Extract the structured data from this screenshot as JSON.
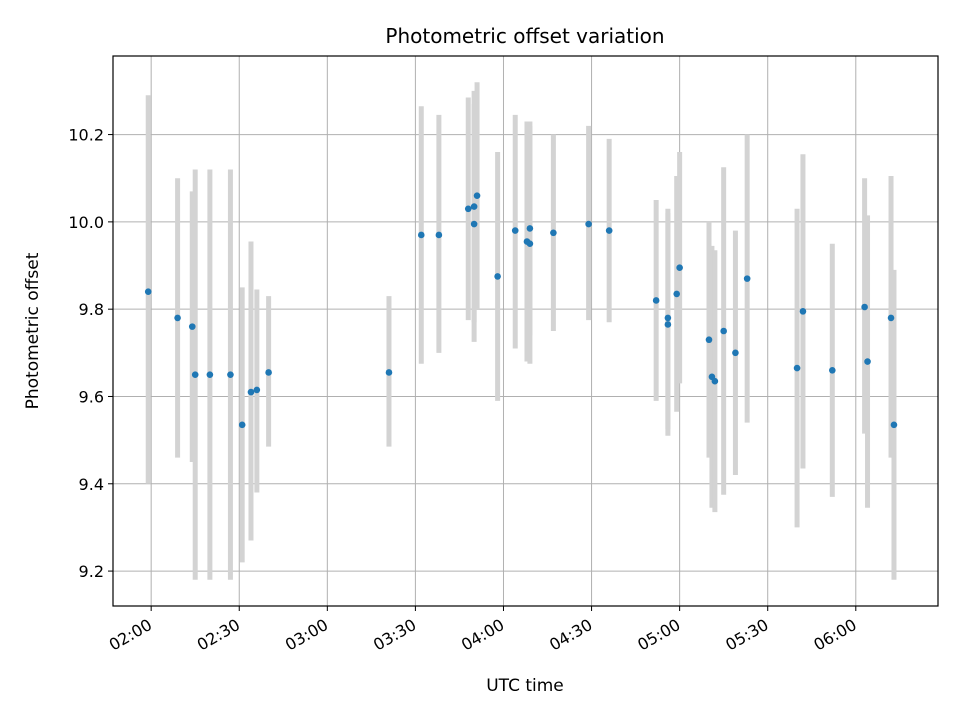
{
  "chart_data": {
    "type": "scatter",
    "title": "Photometric offset variation",
    "xlabel": "UTC time",
    "ylabel": "Photometric offset",
    "x_ticks": [
      "02:00",
      "02:30",
      "03:00",
      "03:30",
      "04:00",
      "04:30",
      "05:00",
      "05:30",
      "06:00"
    ],
    "y_ticks": [
      "9.2",
      "9.4",
      "9.6",
      "9.8",
      "10.0",
      "10.2"
    ],
    "xlim": [
      "01:47",
      "06:28"
    ],
    "ylim": [
      9.12,
      10.38
    ],
    "grid": true,
    "colors": {
      "point": "#1f77b4",
      "errorbar": "#d3d3d3",
      "grid": "#b0b0b0"
    },
    "points": [
      {
        "t": "01:59",
        "y": 9.84,
        "lo": 9.4,
        "hi": 10.29
      },
      {
        "t": "02:09",
        "y": 9.78,
        "lo": 9.46,
        "hi": 10.1
      },
      {
        "t": "02:14",
        "y": 9.76,
        "lo": 9.45,
        "hi": 10.07
      },
      {
        "t": "02:15",
        "y": 9.65,
        "lo": 9.18,
        "hi": 10.12
      },
      {
        "t": "02:20",
        "y": 9.65,
        "lo": 9.18,
        "hi": 10.12
      },
      {
        "t": "02:27",
        "y": 9.65,
        "lo": 9.18,
        "hi": 10.12
      },
      {
        "t": "02:31",
        "y": 9.535,
        "lo": 9.22,
        "hi": 9.85
      },
      {
        "t": "02:34",
        "y": 9.61,
        "lo": 9.27,
        "hi": 9.955
      },
      {
        "t": "02:36",
        "y": 9.615,
        "lo": 9.38,
        "hi": 9.845
      },
      {
        "t": "02:40",
        "y": 9.655,
        "lo": 9.485,
        "hi": 9.83
      },
      {
        "t": "03:21",
        "y": 9.655,
        "lo": 9.485,
        "hi": 9.83
      },
      {
        "t": "03:32",
        "y": 9.97,
        "lo": 9.675,
        "hi": 10.265
      },
      {
        "t": "03:38",
        "y": 9.97,
        "lo": 9.7,
        "hi": 10.245
      },
      {
        "t": "03:48",
        "y": 10.03,
        "lo": 9.775,
        "hi": 10.285
      },
      {
        "t": "03:50",
        "y": 9.995,
        "lo": 9.725,
        "hi": 10.27
      },
      {
        "t": "03:50",
        "y": 10.035,
        "lo": 9.77,
        "hi": 10.3
      },
      {
        "t": "03:51",
        "y": 10.06,
        "lo": 9.8,
        "hi": 10.32
      },
      {
        "t": "03:58",
        "y": 9.875,
        "lo": 9.59,
        "hi": 10.16
      },
      {
        "t": "04:04",
        "y": 9.98,
        "lo": 9.71,
        "hi": 10.245
      },
      {
        "t": "04:08",
        "y": 9.955,
        "lo": 9.68,
        "hi": 10.23
      },
      {
        "t": "04:09",
        "y": 9.95,
        "lo": 9.675,
        "hi": 10.22
      },
      {
        "t": "04:09",
        "y": 9.985,
        "lo": 9.74,
        "hi": 10.23
      },
      {
        "t": "04:17",
        "y": 9.975,
        "lo": 9.75,
        "hi": 10.2
      },
      {
        "t": "04:29",
        "y": 9.995,
        "lo": 9.775,
        "hi": 10.22
      },
      {
        "t": "04:36",
        "y": 9.98,
        "lo": 9.77,
        "hi": 10.19
      },
      {
        "t": "04:52",
        "y": 9.82,
        "lo": 9.59,
        "hi": 10.05
      },
      {
        "t": "04:56",
        "y": 9.78,
        "lo": 9.525,
        "hi": 10.03
      },
      {
        "t": "04:56",
        "y": 9.765,
        "lo": 9.51,
        "hi": 10.02
      },
      {
        "t": "04:59",
        "y": 9.835,
        "lo": 9.565,
        "hi": 10.105
      },
      {
        "t": "05:00",
        "y": 9.895,
        "lo": 9.63,
        "hi": 10.16
      },
      {
        "t": "05:10",
        "y": 9.73,
        "lo": 9.46,
        "hi": 10.0
      },
      {
        "t": "05:11",
        "y": 9.645,
        "lo": 9.345,
        "hi": 9.945
      },
      {
        "t": "05:12",
        "y": 9.635,
        "lo": 9.335,
        "hi": 9.935
      },
      {
        "t": "05:15",
        "y": 9.75,
        "lo": 9.375,
        "hi": 10.125
      },
      {
        "t": "05:19",
        "y": 9.7,
        "lo": 9.42,
        "hi": 9.98
      },
      {
        "t": "05:23",
        "y": 9.87,
        "lo": 9.54,
        "hi": 10.2
      },
      {
        "t": "05:40",
        "y": 9.665,
        "lo": 9.3,
        "hi": 10.03
      },
      {
        "t": "05:42",
        "y": 9.795,
        "lo": 9.435,
        "hi": 10.155
      },
      {
        "t": "05:52",
        "y": 9.66,
        "lo": 9.37,
        "hi": 9.95
      },
      {
        "t": "06:03",
        "y": 9.805,
        "lo": 9.515,
        "hi": 10.1
      },
      {
        "t": "06:04",
        "y": 9.68,
        "lo": 9.345,
        "hi": 10.015
      },
      {
        "t": "06:12",
        "y": 9.78,
        "lo": 9.46,
        "hi": 10.105
      },
      {
        "t": "06:13",
        "y": 9.535,
        "lo": 9.18,
        "hi": 9.89
      }
    ]
  }
}
